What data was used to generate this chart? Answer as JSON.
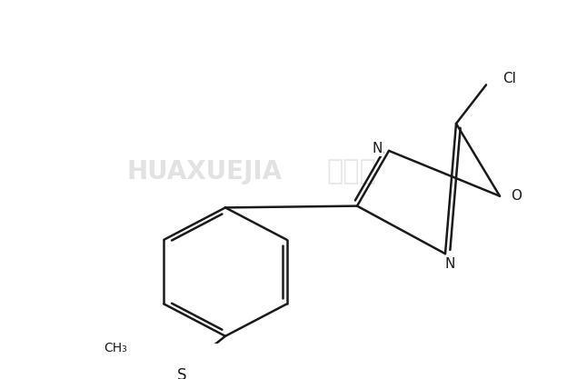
{
  "bg_color": "#ffffff",
  "line_color": "#1a1a1a",
  "lw": 1.8,
  "figsize": [
    6.24,
    4.17
  ],
  "dpi": 100,
  "watermark1": "HUAXUEJIA",
  "watermark2": "化学加",
  "label_N": "N",
  "label_O": "O",
  "label_S": "S",
  "label_Cl": "Cl",
  "label_CH3": "CH₃",
  "label_reg": "®"
}
